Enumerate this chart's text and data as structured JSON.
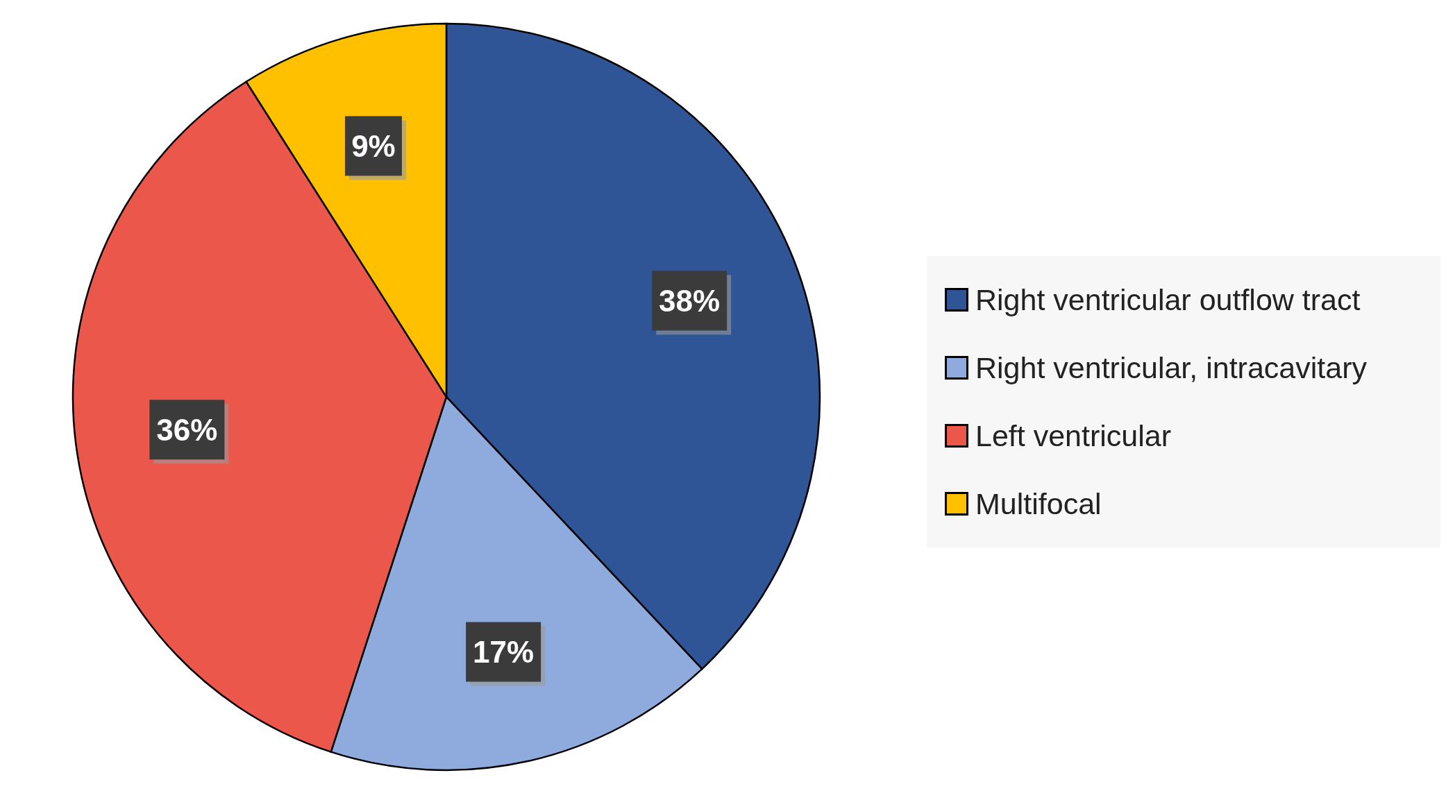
{
  "chart_data": {
    "type": "pie",
    "categories": [
      "Right ventricular outflow tract",
      "Right ventricular, intracavitary",
      "Left ventricular",
      "Multifocal"
    ],
    "values": [
      38,
      17,
      36,
      9
    ],
    "colors": [
      "#2f5597",
      "#8faadc",
      "#ec574b",
      "#ffc000"
    ],
    "value_labels": [
      "38%",
      "17%",
      "36%",
      "9%"
    ],
    "legend": "right"
  }
}
